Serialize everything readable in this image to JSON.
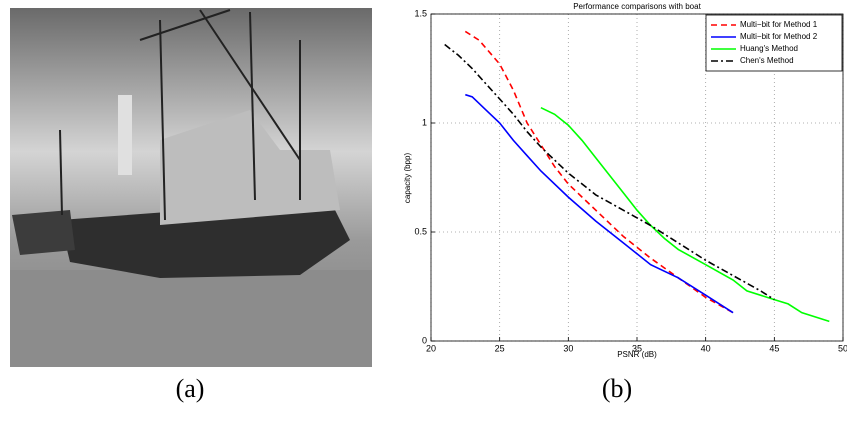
{
  "chart_data": {
    "type": "line",
    "title": "Performance comparisons with boat",
    "xlabel": "PSNR (dB)",
    "ylabel": "capacity (bpp)",
    "xlim": [
      20,
      50
    ],
    "xticks": [
      20,
      25,
      30,
      35,
      40,
      45,
      50
    ],
    "ylim": [
      0,
      1.5
    ],
    "yticks": [
      0,
      0.5,
      1,
      1.5
    ],
    "grid": true,
    "legend": "upper right",
    "series": [
      {
        "name": "Multi−bit for Method 1",
        "color": "#ff0000",
        "line_style": "dashed",
        "x": [
          22.5,
          23.5,
          25,
          26,
          27,
          28,
          29,
          30,
          32,
          34,
          36,
          38,
          40,
          42
        ],
        "values": [
          1.42,
          1.38,
          1.27,
          1.15,
          1.0,
          0.9,
          0.8,
          0.72,
          0.6,
          0.48,
          0.38,
          0.29,
          0.2,
          0.13
        ]
      },
      {
        "name": "Multi−bit for Method 2",
        "color": "#0000ff",
        "line_style": "solid",
        "x": [
          22.5,
          23,
          24,
          25,
          26,
          27,
          28,
          30,
          32,
          34,
          35,
          36,
          38,
          40,
          42
        ],
        "values": [
          1.13,
          1.12,
          1.06,
          1.0,
          0.92,
          0.85,
          0.78,
          0.66,
          0.55,
          0.45,
          0.4,
          0.35,
          0.29,
          0.21,
          0.13
        ]
      },
      {
        "name": "Huang's Method",
        "color": "#00ff00",
        "line_style": "solid",
        "x": [
          28,
          29,
          30,
          31,
          32,
          33,
          34,
          35,
          36,
          37,
          38,
          40,
          42,
          43,
          45,
          46,
          47,
          49
        ],
        "values": [
          1.07,
          1.04,
          0.99,
          0.92,
          0.84,
          0.76,
          0.68,
          0.6,
          0.53,
          0.47,
          0.42,
          0.35,
          0.28,
          0.23,
          0.19,
          0.17,
          0.13,
          0.09
        ]
      },
      {
        "name": "Chen's Method",
        "color": "#000000",
        "line_style": "dashdot",
        "x": [
          21,
          22,
          23,
          24,
          25,
          26,
          27,
          28,
          29,
          30,
          31,
          32,
          34,
          36,
          38,
          40,
          42,
          44,
          45
        ],
        "values": [
          1.36,
          1.31,
          1.25,
          1.18,
          1.11,
          1.04,
          0.96,
          0.89,
          0.83,
          0.77,
          0.72,
          0.67,
          0.6,
          0.53,
          0.45,
          0.37,
          0.3,
          0.23,
          0.19
        ]
      }
    ]
  },
  "captions": [
    "(a)",
    "(b)"
  ]
}
